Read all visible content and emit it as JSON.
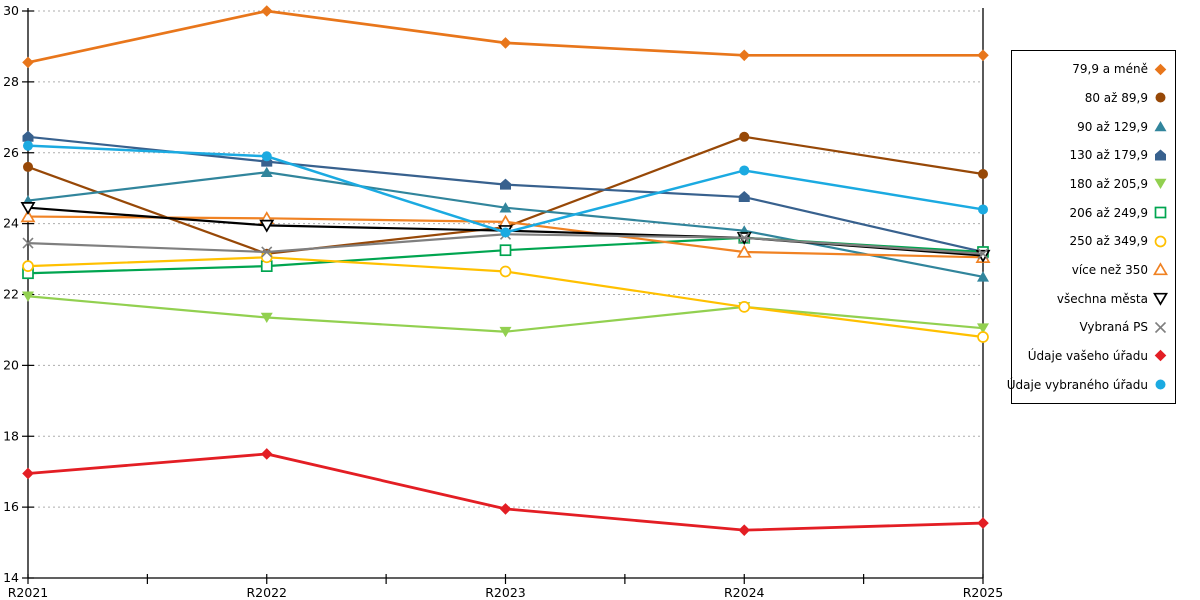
{
  "chart_data": {
    "type": "line",
    "title": "",
    "xlabel": "",
    "ylabel": "",
    "x_categories": [
      "R2021",
      "R2022",
      "R2023",
      "R2024",
      "R2025"
    ],
    "ylim": [
      14,
      30
    ],
    "yticks": [
      14,
      16,
      18,
      20,
      22,
      24,
      26,
      28,
      30
    ],
    "grid": "horizontal-dashed",
    "gridline_color": "#ADADAD",
    "axis_color": "#000000",
    "legend_position": "right",
    "series": [
      {
        "name": "79,9 a méně",
        "color": "#E8761B",
        "marker": "diamond",
        "filled": true,
        "lw": 2.7,
        "values": [
          28.55,
          30.0,
          29.1,
          28.75,
          28.75
        ]
      },
      {
        "name": "80 až 89,9",
        "color": "#974807",
        "marker": "circle",
        "filled": true,
        "lw": 2.2,
        "values": [
          25.6,
          23.15,
          23.9,
          26.45,
          25.4
        ]
      },
      {
        "name": "90 až 129,9",
        "color": "#31859C",
        "marker": "triangle-up",
        "filled": true,
        "lw": 2.2,
        "values": [
          24.65,
          25.45,
          24.45,
          23.8,
          22.5
        ]
      },
      {
        "name": "130 až 179,9",
        "color": "#38618E",
        "marker": "pentagon",
        "filled": true,
        "lw": 2.2,
        "values": [
          26.45,
          25.75,
          25.1,
          24.75,
          23.2
        ]
      },
      {
        "name": "180 až 205,9",
        "color": "#92D050",
        "marker": "triangle-down",
        "filled": true,
        "lw": 2.2,
        "values": [
          21.95,
          21.35,
          20.95,
          21.65,
          21.05
        ]
      },
      {
        "name": "206 až 249,9",
        "color": "#00A550",
        "marker": "square",
        "filled": false,
        "lw": 2.2,
        "values": [
          22.6,
          22.8,
          23.25,
          23.6,
          23.2
        ]
      },
      {
        "name": "250 až 349,9",
        "color": "#FFC000",
        "marker": "circle",
        "filled": false,
        "lw": 2.2,
        "values": [
          22.8,
          23.05,
          22.65,
          21.65,
          20.8
        ]
      },
      {
        "name": "více než 350",
        "color": "#F08223",
        "marker": "triangle-up",
        "filled": false,
        "lw": 2.2,
        "values": [
          24.2,
          24.15,
          24.05,
          23.2,
          23.05
        ]
      },
      {
        "name": "všechna města",
        "color": "#000000",
        "marker": "triangle-down",
        "filled": false,
        "lw": 2.2,
        "values": [
          24.45,
          23.95,
          23.8,
          23.6,
          23.1
        ]
      },
      {
        "name": "Vybraná PS",
        "color": "#7F7F7F",
        "marker": "x",
        "filled": false,
        "lw": 2.2,
        "values": [
          23.45,
          23.2,
          23.7,
          23.6,
          23.15
        ]
      },
      {
        "name": "Údaje vašeho úřadu",
        "color": "#E31E24",
        "marker": "diamond",
        "filled": true,
        "lw": 2.8,
        "values": [
          16.95,
          17.5,
          15.95,
          15.35,
          15.55
        ]
      },
      {
        "name": "Údaje vybraného úřadu",
        "color": "#1BAAE1",
        "marker": "circle",
        "filled": true,
        "lw": 2.5,
        "values": [
          26.2,
          25.9,
          23.75,
          25.5,
          24.4
        ]
      }
    ]
  }
}
